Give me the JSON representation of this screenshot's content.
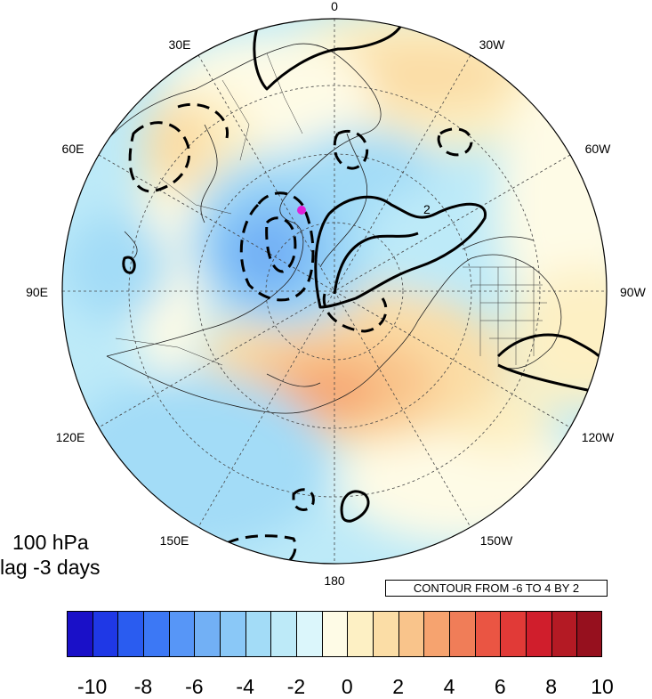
{
  "figure": {
    "level_label": "100 hPa",
    "lag_label": "lag -3 days",
    "contour_note": "CONTOUR FROM -6 TO 4 BY 2",
    "inline_contour_label": "2",
    "projection": "north-polar-stereographic"
  },
  "longitude_labels": [
    {
      "key": "0",
      "text": "0"
    },
    {
      "key": "30w",
      "text": "30W"
    },
    {
      "key": "60w",
      "text": "60W"
    },
    {
      "key": "90w",
      "text": "90W"
    },
    {
      "key": "120w",
      "text": "120W"
    },
    {
      "key": "150w",
      "text": "150W"
    },
    {
      "key": "180",
      "text": "180"
    },
    {
      "key": "150e",
      "text": "150E"
    },
    {
      "key": "120e",
      "text": "120E"
    },
    {
      "key": "90e",
      "text": "90E"
    },
    {
      "key": "60e",
      "text": "60E"
    },
    {
      "key": "30e",
      "text": "30E"
    }
  ],
  "colorbar": {
    "ticks": [
      "-10",
      "-8",
      "-6",
      "-4",
      "-2",
      "0",
      "2",
      "4",
      "6",
      "8",
      "10"
    ],
    "colors": [
      "#1a10c8",
      "#1f38e6",
      "#2a5cf0",
      "#3c78f5",
      "#5796f7",
      "#72b0f5",
      "#8ac8f7",
      "#a3dcf7",
      "#bdeaf8",
      "#dbf6fb",
      "#fefbe6",
      "#fdf0c4",
      "#fbdda6",
      "#f9c48b",
      "#f6a36f",
      "#f07d58",
      "#ea5543",
      "#e13a37",
      "#d01e2c",
      "#b41a24",
      "#96101e"
    ]
  },
  "marker": {
    "color": "#e020d8"
  }
}
